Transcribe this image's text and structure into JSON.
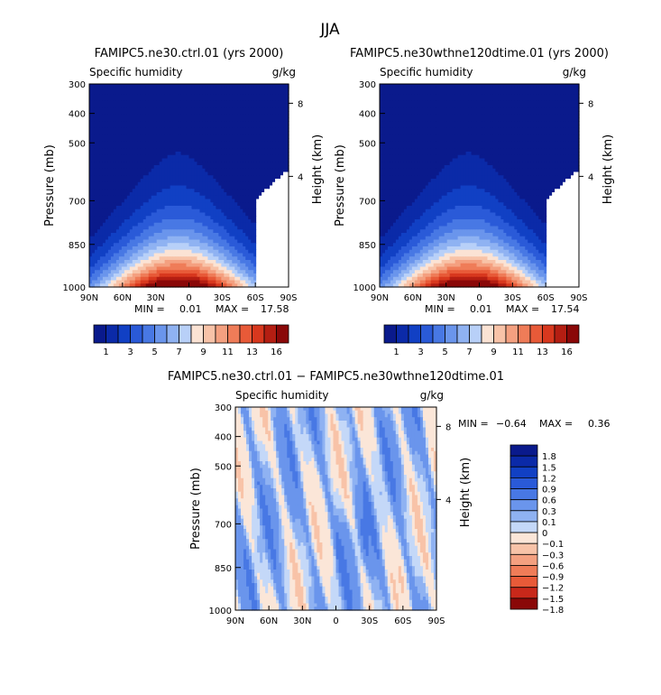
{
  "figure": {
    "title": "JJA"
  },
  "colorbar_top": {
    "colors": [
      "#0a1a8c",
      "#0b2aa8",
      "#1140c4",
      "#2a5ad8",
      "#4878e4",
      "#6a95ec",
      "#8fb2f2",
      "#b8d0f8",
      "#fbe3d4",
      "#f8c3a8",
      "#f4a080",
      "#ef7c58",
      "#e85a38",
      "#d8381e",
      "#b41e12",
      "#8a0808"
    ],
    "labels": [
      "1",
      "3",
      "5",
      "7",
      "9",
      "11",
      "13",
      "16"
    ]
  },
  "colorbar_diff": {
    "colors": [
      "#0a1a8c",
      "#0b2aa8",
      "#1140c4",
      "#2a5ad8",
      "#4878e4",
      "#6a95ec",
      "#8fb2f2",
      "#c4d8f8",
      "#fbe6d8",
      "#f8c3a8",
      "#f4a080",
      "#ef7c58",
      "#e85a38",
      "#c8281a",
      "#8a0808"
    ],
    "labels": [
      "1.8",
      "1.5",
      "1.2",
      "0.9",
      "0.6",
      "0.3",
      "0.1",
      "0",
      "−0.1",
      "−0.3",
      "−0.6",
      "−0.9",
      "−1.2",
      "−1.5",
      "−1.8"
    ]
  },
  "chart_data": [
    {
      "type": "heatmap",
      "title": "FAMIPC5.ne30.ctrl.01 (yrs 2000)",
      "left_label": "Specific humidity",
      "right_label": "g/kg",
      "ylabel": "Pressure (mb)",
      "y2label": "Height (km)",
      "xticks": [
        "90N",
        "60N",
        "30N",
        "0",
        "30S",
        "60S",
        "90S"
      ],
      "yticks": [
        "300",
        "400",
        "500",
        "700",
        "850",
        "1000"
      ],
      "y2ticks": [
        "8",
        "4"
      ],
      "stats": {
        "min_label": "MIN =",
        "min": "0.01",
        "max_label": "MAX =",
        "max": "17.58"
      },
      "x_range": [
        90,
        -90
      ],
      "y_range": [
        1000,
        300
      ],
      "contour_levels": [
        1,
        2,
        3,
        4,
        5,
        6,
        7,
        8,
        9,
        10,
        11,
        12,
        13,
        14,
        15,
        16
      ]
    },
    {
      "type": "heatmap",
      "title": "FAMIPC5.ne30wthne120dtime.01 (yrs 2000)",
      "left_label": "Specific humidity",
      "right_label": "g/kg",
      "ylabel": "Pressure (mb)",
      "y2label": "Height (km)",
      "xticks": [
        "90N",
        "60N",
        "30N",
        "0",
        "30S",
        "60S",
        "90S"
      ],
      "yticks": [
        "300",
        "400",
        "500",
        "700",
        "850",
        "1000"
      ],
      "y2ticks": [
        "8",
        "4"
      ],
      "stats": {
        "min_label": "MIN =",
        "min": "0.01",
        "max_label": "MAX =",
        "max": "17.54"
      },
      "x_range": [
        90,
        -90
      ],
      "y_range": [
        1000,
        300
      ],
      "contour_levels": [
        1,
        2,
        3,
        4,
        5,
        6,
        7,
        8,
        9,
        10,
        11,
        12,
        13,
        14,
        15,
        16
      ]
    },
    {
      "type": "heatmap",
      "title": "FAMIPC5.ne30.ctrl.01 − FAMIPC5.ne30wthne120dtime.01",
      "left_label": "Specific humidity",
      "right_label": "g/kg",
      "ylabel": "Pressure (mb)",
      "y2label": "Height (km)",
      "xticks": [
        "90N",
        "60N",
        "30N",
        "0",
        "30S",
        "60S",
        "90S"
      ],
      "yticks": [
        "300",
        "400",
        "500",
        "700",
        "850",
        "1000"
      ],
      "y2ticks": [
        "8",
        "4"
      ],
      "stats": {
        "min_label": "MIN =",
        "min": "−0.64",
        "max_label": "MAX =",
        "max": "0.36"
      },
      "x_range": [
        90,
        -90
      ],
      "y_range": [
        1000,
        300
      ],
      "contour_levels": [
        -1.8,
        -1.5,
        -1.2,
        -0.9,
        -0.6,
        -0.3,
        -0.1,
        0,
        0.1,
        0.3,
        0.6,
        0.9,
        1.2,
        1.5,
        1.8
      ]
    }
  ]
}
